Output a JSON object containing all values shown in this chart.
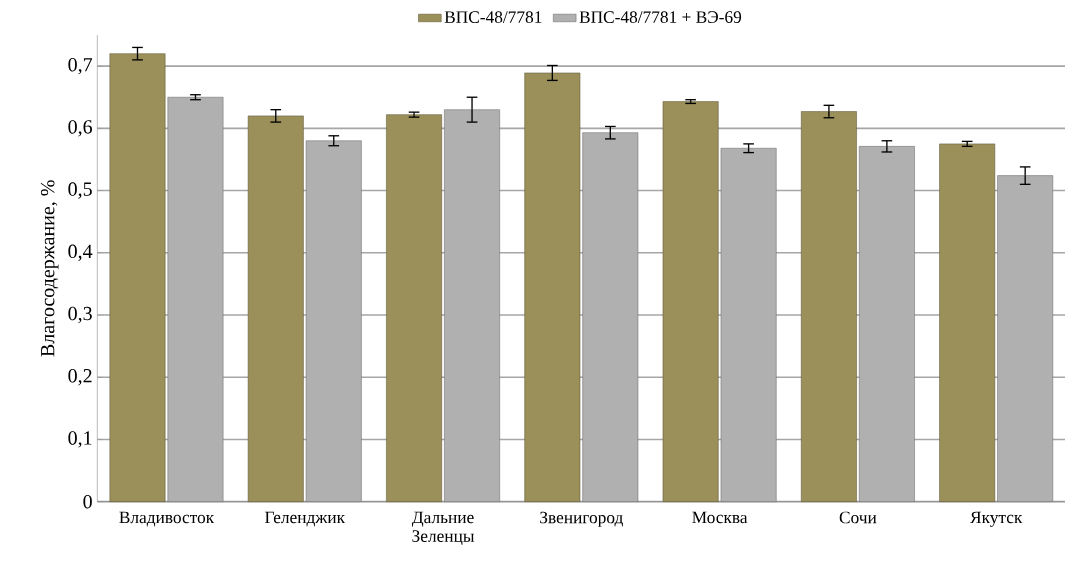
{
  "chart_data": {
    "type": "bar",
    "ylabel": "Влагосодержание, %",
    "categories": [
      "Владивосток",
      "Геленджик",
      "Дальние Зеленцы",
      "Звенигород",
      "Москва",
      "Сочи",
      "Якутск"
    ],
    "series": [
      {
        "name": "ВПС-48/7781",
        "color": "#9b8f5a",
        "values": [
          0.72,
          0.62,
          0.622,
          0.689,
          0.643,
          0.627,
          0.575
        ],
        "errors": [
          0.01,
          0.01,
          0.004,
          0.012,
          0.003,
          0.01,
          0.004
        ]
      },
      {
        "name": "ВПС-48/7781 + ВЭ-69",
        "color": "#b0b0b0",
        "values": [
          0.65,
          0.58,
          0.63,
          0.593,
          0.568,
          0.571,
          0.524
        ],
        "errors": [
          0.004,
          0.008,
          0.02,
          0.01,
          0.007,
          0.009,
          0.014
        ]
      }
    ],
    "ylim": [
      0,
      0.75
    ],
    "yticks": [
      {
        "value": 0,
        "label": "0"
      },
      {
        "value": 0.1,
        "label": "0,1"
      },
      {
        "value": 0.2,
        "label": "0,2"
      },
      {
        "value": 0.3,
        "label": "0,3"
      },
      {
        "value": 0.4,
        "label": "0,4"
      },
      {
        "value": 0.5,
        "label": "0,5"
      },
      {
        "value": 0.6,
        "label": "0,6"
      },
      {
        "value": 0.7,
        "label": "0,7"
      }
    ],
    "grid": "y",
    "legend": "top"
  }
}
